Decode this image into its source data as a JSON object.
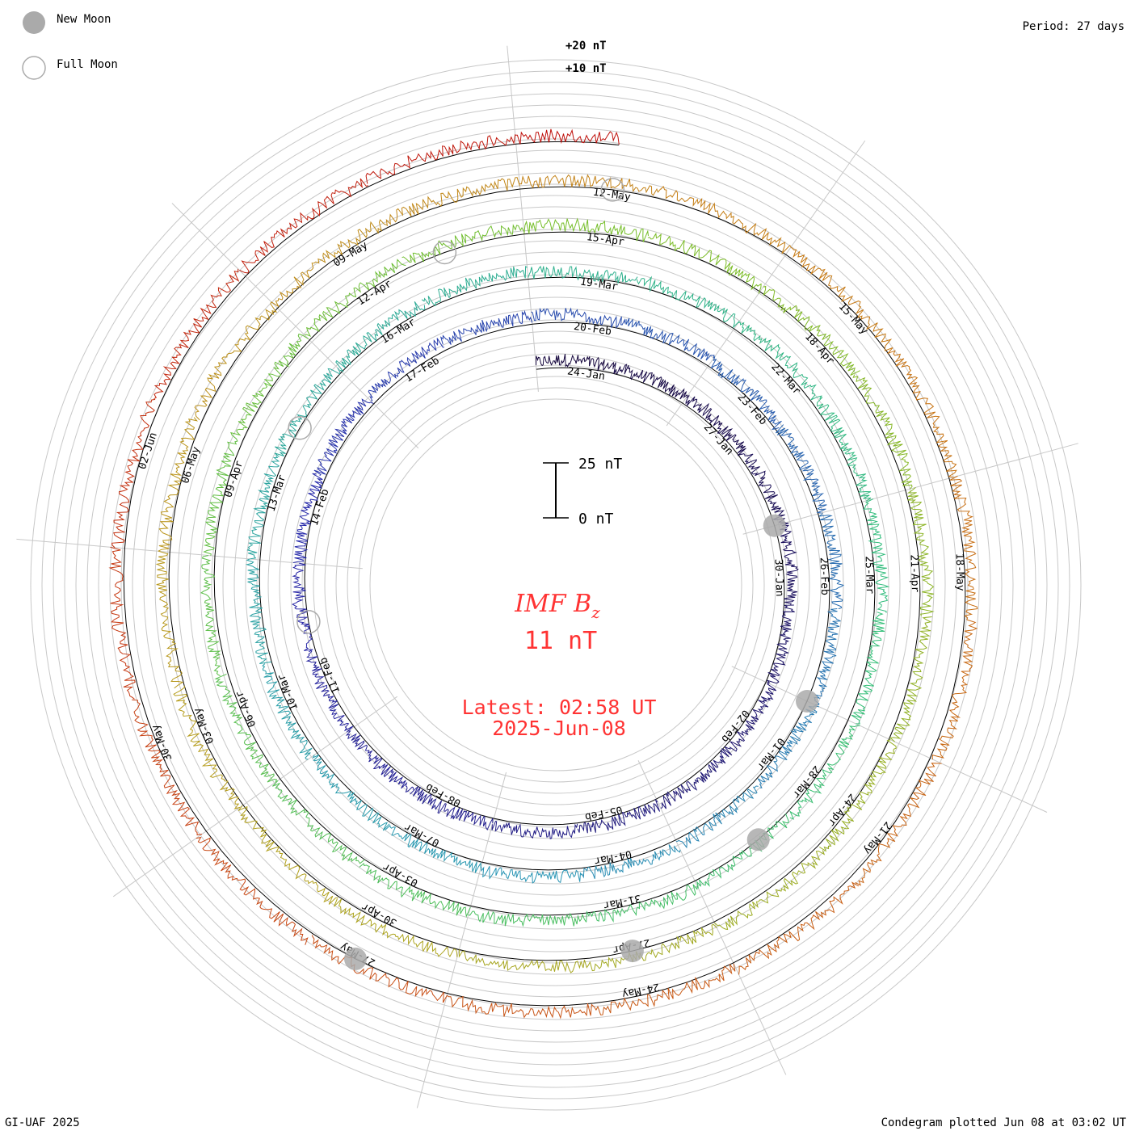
{
  "legend": {
    "new_moon": "New Moon",
    "full_moon": "Full Moon",
    "new_moon_color": "#aaaaaa"
  },
  "period_label": "Period: 27 days",
  "footer": {
    "left": "GI-UAF 2025",
    "right": "Condegram plotted Jun 08 at 03:02 UT"
  },
  "center": {
    "quantity": "IMF B",
    "subscript": "z",
    "current_value": "11 nT",
    "latest_label": "Latest: 02:58 UT",
    "latest_date": "2025-Jun-08"
  },
  "chart_data": {
    "type": "condegram",
    "title": "IMF Bz",
    "period_days": 27,
    "scale_bar": {
      "top_label": "25 nT",
      "bottom_label": "0 nT",
      "top_value_nT": 25,
      "bottom_value_nT": 0
    },
    "scale_labels": [
      {
        "text": "+20 nT",
        "value_nT": 20
      },
      {
        "text": "+10 nT",
        "value_nT": 10
      }
    ],
    "start_date": "2025-01-23",
    "end_date": "2025-06-08",
    "cycles": [
      {
        "index": 1,
        "color": "#1e0a50",
        "dates": [
          "24-Jan",
          "27-Jan",
          "30-Jan",
          "02-Feb",
          "05-Feb",
          "08-Feb",
          "11-Feb"
        ]
      },
      {
        "index": 2,
        "color": "#2b2fa8",
        "dates": [
          "14-Feb",
          "17-Feb",
          "20-Feb",
          "23-Feb",
          "26-Feb",
          "01-Mar",
          "04-Mar",
          "07-Mar",
          "10-Mar"
        ]
      },
      {
        "index": 3,
        "color": "#2a9cb4",
        "dates": [
          "13-Mar",
          "16-Mar",
          "19-Mar",
          "22-Mar",
          "25-Mar",
          "28-Mar",
          "31-Mar",
          "03-Apr",
          "06-Apr"
        ]
      },
      {
        "index": 4,
        "color": "#46be4e",
        "dates": [
          "09-Apr",
          "12-Apr",
          "15-Apr",
          "18-Apr",
          "21-Apr",
          "24-Apr",
          "27-Apr",
          "30-Apr",
          "03-May"
        ]
      },
      {
        "index": 5,
        "color": "#b4a020",
        "dates": [
          "06-May",
          "09-May",
          "12-May",
          "15-May",
          "18-May",
          "21-May",
          "24-May",
          "27-May",
          "30-May"
        ]
      },
      {
        "index": 6,
        "color": "#c01a10",
        "dates": [
          "02-Jun"
        ]
      }
    ],
    "new_moon_dates": [
      "29-Jan",
      "28-Feb",
      "29-Mar",
      "27-Apr",
      "27-May"
    ],
    "full_moon_dates": [
      "12-Feb",
      "14-Mar",
      "13-Apr",
      "12-May"
    ],
    "y_unit": "nT"
  }
}
